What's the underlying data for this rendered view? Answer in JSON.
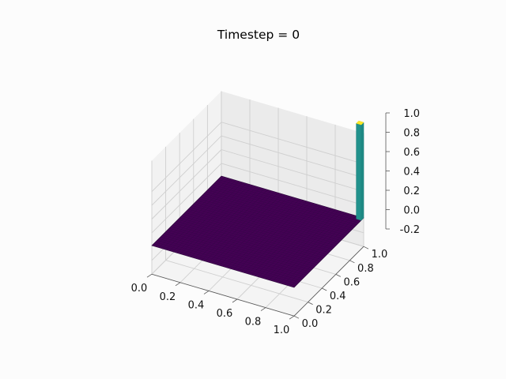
{
  "chart_data": {
    "type": "surface",
    "title": "Timestep = 0",
    "xlabel": "",
    "ylabel": "",
    "zlabel": "",
    "colormap": "viridis",
    "grid": true,
    "xlim": [
      0.0,
      1.0
    ],
    "ylim": [
      0.0,
      1.0
    ],
    "zlim": [
      -0.2,
      1.0
    ],
    "x_ticks": [
      "0.0",
      "0.2",
      "0.4",
      "0.6",
      "0.8",
      "1.0"
    ],
    "y_ticks": [
      "0.0",
      "0.2",
      "0.4",
      "0.6",
      "0.8",
      "1.0"
    ],
    "z_ticks": [
      "-0.2",
      "0.0",
      "0.2",
      "0.4",
      "0.6",
      "0.8",
      "1.0"
    ],
    "surface": {
      "baseline_z": 0.0,
      "peak": {
        "x": 1.0,
        "y": 1.0,
        "z": 1.0
      },
      "colors": {
        "low": "#440154",
        "mid": "#21918c",
        "high": "#fde725"
      }
    }
  }
}
